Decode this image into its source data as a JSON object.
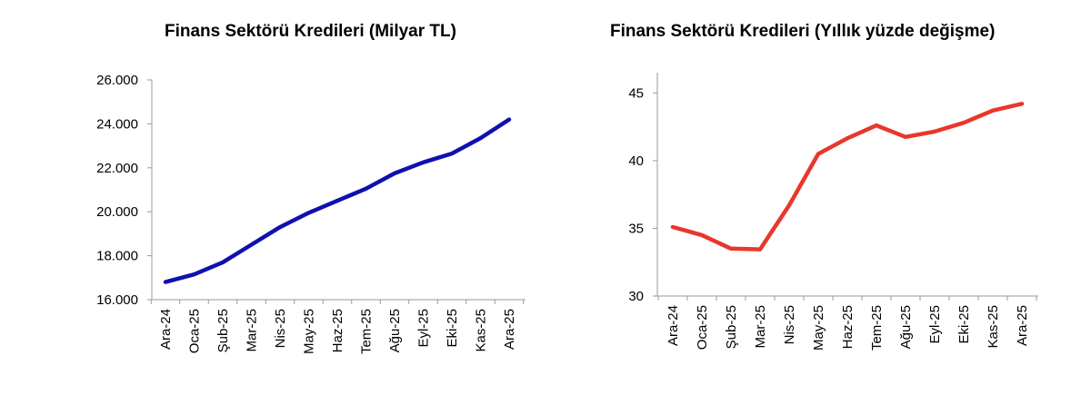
{
  "chart_data": [
    {
      "type": "line",
      "title": "Finans Sektörü Kredileri (Milyar TL)",
      "xlabel": "",
      "ylabel": "",
      "categories": [
        "Ara-24",
        "Oca-25",
        "Şub-25",
        "Mar-25",
        "Nis-25",
        "May-25",
        "Haz-25",
        "Tem-25",
        "Ağu-25",
        "Eyl-25",
        "Eki-25",
        "Kas-25",
        "Ara-25"
      ],
      "yticks": [
        16000,
        18000,
        20000,
        22000,
        24000,
        26000
      ],
      "ytick_labels": [
        "16.000",
        "18.000",
        "20.000",
        "22.000",
        "24.000",
        "26.000"
      ],
      "ylim": [
        16000,
        26000
      ],
      "grid": false,
      "color": "#1010b0",
      "series": [
        {
          "values": [
            16800,
            17150,
            17700,
            18500,
            19300,
            19950,
            20500,
            21050,
            21750,
            22250,
            22650,
            23350,
            24200
          ]
        }
      ]
    },
    {
      "type": "line",
      "title": "Finans Sektörü Kredileri (Yıllık yüzde değişme)",
      "xlabel": "",
      "ylabel": "",
      "categories": [
        "Ara-24",
        "Oca-25",
        "Şub-25",
        "Mar-25",
        "Nis-25",
        "May-25",
        "Haz-25",
        "Tem-25",
        "Ağu-25",
        "Eyl-25",
        "Eki-25",
        "Kas-25",
        "Ara-25"
      ],
      "yticks": [
        30,
        35,
        40,
        45
      ],
      "ytick_labels": [
        "30",
        "35",
        "40",
        "45"
      ],
      "ylim": [
        30,
        46.5
      ],
      "grid": false,
      "color": "#e8372c",
      "series": [
        {
          "values": [
            35.1,
            34.5,
            33.5,
            33.45,
            36.7,
            40.5,
            41.65,
            42.6,
            41.75,
            42.15,
            42.8,
            43.7,
            44.2
          ]
        }
      ]
    }
  ]
}
